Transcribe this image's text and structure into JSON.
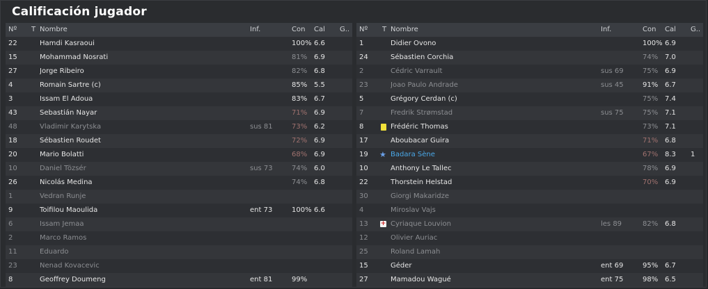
{
  "title": "Calificación jugador",
  "headers": {
    "num": "Nº",
    "t": "T",
    "name": "Nombre",
    "inf": "Inf.",
    "con": "Con",
    "cal": "Cal",
    "g": "G.."
  },
  "left": [
    {
      "num": "22",
      "name": "Hamdi Kasraoui",
      "inf": "",
      "con": "100%",
      "cal": "6.6",
      "g": "",
      "style": ""
    },
    {
      "num": "15",
      "name": "Mohammad Nosrati",
      "inf": "",
      "con": "81%",
      "cal": "6.9",
      "g": "",
      "style": "",
      "conStyle": "dim"
    },
    {
      "num": "27",
      "name": "Jorge Ribeiro",
      "inf": "",
      "con": "82%",
      "cal": "6.8",
      "g": "",
      "style": "",
      "conStyle": "dim"
    },
    {
      "num": "4",
      "name": "Romain Sartre (c)",
      "inf": "",
      "con": "85%",
      "cal": "5.5",
      "g": "",
      "style": ""
    },
    {
      "num": "3",
      "name": "Issam El Adoua",
      "inf": "",
      "con": "83%",
      "cal": "6.7",
      "g": "",
      "style": ""
    },
    {
      "num": "43",
      "name": "Sebastián Nayar",
      "inf": "",
      "con": "71%",
      "cal": "6.9",
      "g": "",
      "style": "",
      "conStyle": "lowcon"
    },
    {
      "num": "48",
      "name": "Vladimir Karytska",
      "inf": "sus 81",
      "con": "73%",
      "cal": "6.2",
      "g": "",
      "style": "dim",
      "conStyle": "lowcon"
    },
    {
      "num": "18",
      "name": "Sébastien Roudet",
      "inf": "",
      "con": "72%",
      "cal": "6.9",
      "g": "",
      "style": "",
      "conStyle": "lowcon"
    },
    {
      "num": "20",
      "name": "Mario Bolatti",
      "inf": "",
      "con": "68%",
      "cal": "6.9",
      "g": "",
      "style": "",
      "conStyle": "lowcon"
    },
    {
      "num": "10",
      "name": "Daniel Tözsér",
      "inf": "sus 73",
      "con": "74%",
      "cal": "6.0",
      "g": "",
      "style": "dim",
      "conStyle": "dim"
    },
    {
      "num": "26",
      "name": "Nicolás Medina",
      "inf": "",
      "con": "74%",
      "cal": "6.8",
      "g": "",
      "style": "",
      "conStyle": "dim"
    },
    {
      "num": "1",
      "name": "Vedran Runje",
      "inf": "",
      "con": "",
      "cal": "",
      "g": "",
      "style": "dim"
    },
    {
      "num": "9",
      "name": "Toifilou Maoulida",
      "inf": "ent 73",
      "con": "100%",
      "cal": "6.6",
      "g": "",
      "style": ""
    },
    {
      "num": "6",
      "name": "Issam Jemaa",
      "inf": "",
      "con": "",
      "cal": "",
      "g": "",
      "style": "dim"
    },
    {
      "num": "2",
      "name": "Marco Ramos",
      "inf": "",
      "con": "",
      "cal": "",
      "g": "",
      "style": "dim"
    },
    {
      "num": "11",
      "name": "Eduardo",
      "inf": "",
      "con": "",
      "cal": "",
      "g": "",
      "style": "dim"
    },
    {
      "num": "23",
      "name": "Nenad Kovacevic",
      "inf": "",
      "con": "",
      "cal": "",
      "g": "",
      "style": "dim"
    },
    {
      "num": "8",
      "name": "Geoffrey Doumeng",
      "inf": "ent 81",
      "con": "99%",
      "cal": "",
      "g": "",
      "style": ""
    }
  ],
  "right": [
    {
      "num": "1",
      "name": "Didier Ovono",
      "inf": "",
      "con": "100%",
      "cal": "6.9",
      "g": "",
      "style": ""
    },
    {
      "num": "24",
      "name": "Sébastien Corchia",
      "inf": "",
      "con": "74%",
      "cal": "7.0",
      "g": "",
      "style": "",
      "conStyle": "dim"
    },
    {
      "num": "2",
      "name": "Cédric Varrault",
      "inf": "sus 69",
      "con": "75%",
      "cal": "6.9",
      "g": "",
      "style": "dim",
      "conStyle": "dim"
    },
    {
      "num": "23",
      "name": "Joao Paulo Andrade",
      "inf": "sus 45",
      "con": "91%",
      "cal": "6.7",
      "g": "",
      "style": "dim"
    },
    {
      "num": "5",
      "name": "Grégory Cerdan (c)",
      "inf": "",
      "con": "75%",
      "cal": "7.4",
      "g": "",
      "style": "",
      "conStyle": "dim"
    },
    {
      "num": "7",
      "name": "Fredrik Strømstad",
      "inf": "sus 75",
      "con": "75%",
      "cal": "7.1",
      "g": "",
      "style": "dim",
      "conStyle": "dim"
    },
    {
      "num": "8",
      "name": "Frédéric Thomas",
      "inf": "",
      "con": "73%",
      "cal": "7.1",
      "g": "",
      "style": "",
      "conStyle": "dim",
      "badge": "yellow-card"
    },
    {
      "num": "17",
      "name": "Aboubacar Guira",
      "inf": "",
      "con": "71%",
      "cal": "6.8",
      "g": "",
      "style": "",
      "conStyle": "lowcon"
    },
    {
      "num": "19",
      "name": "Badara Sène",
      "inf": "",
      "con": "67%",
      "cal": "8.3",
      "g": "1",
      "style": "star",
      "conStyle": "lowcon",
      "badge": "star"
    },
    {
      "num": "10",
      "name": "Anthony Le Tallec",
      "inf": "",
      "con": "78%",
      "cal": "6.9",
      "g": "",
      "style": "",
      "conStyle": "dim"
    },
    {
      "num": "22",
      "name": "Thorstein Helstad",
      "inf": "",
      "con": "70%",
      "cal": "6.9",
      "g": "",
      "style": "",
      "conStyle": "lowcon"
    },
    {
      "num": "30",
      "name": "Giorgi Makaridze",
      "inf": "",
      "con": "",
      "cal": "",
      "g": "",
      "style": "dim"
    },
    {
      "num": "4",
      "name": "Miroslav Vajs",
      "inf": "",
      "con": "",
      "cal": "",
      "g": "",
      "style": "dim"
    },
    {
      "num": "13",
      "name": "Cyriaque Louvion",
      "inf": "les 89",
      "con": "82%",
      "cal": "6.8",
      "g": "",
      "style": "dim",
      "conStyle": "dim",
      "badge": "injury"
    },
    {
      "num": "12",
      "name": "Olivier Auriac",
      "inf": "",
      "con": "",
      "cal": "",
      "g": "",
      "style": "dim"
    },
    {
      "num": "25",
      "name": "Roland Lamah",
      "inf": "",
      "con": "",
      "cal": "",
      "g": "",
      "style": "dim"
    },
    {
      "num": "15",
      "name": "Géder",
      "inf": "ent 69",
      "con": "95%",
      "cal": "6.7",
      "g": "",
      "style": ""
    },
    {
      "num": "27",
      "name": "Mamadou Wagué",
      "inf": "ent 75",
      "con": "98%",
      "cal": "6.5",
      "g": "",
      "style": ""
    }
  ]
}
